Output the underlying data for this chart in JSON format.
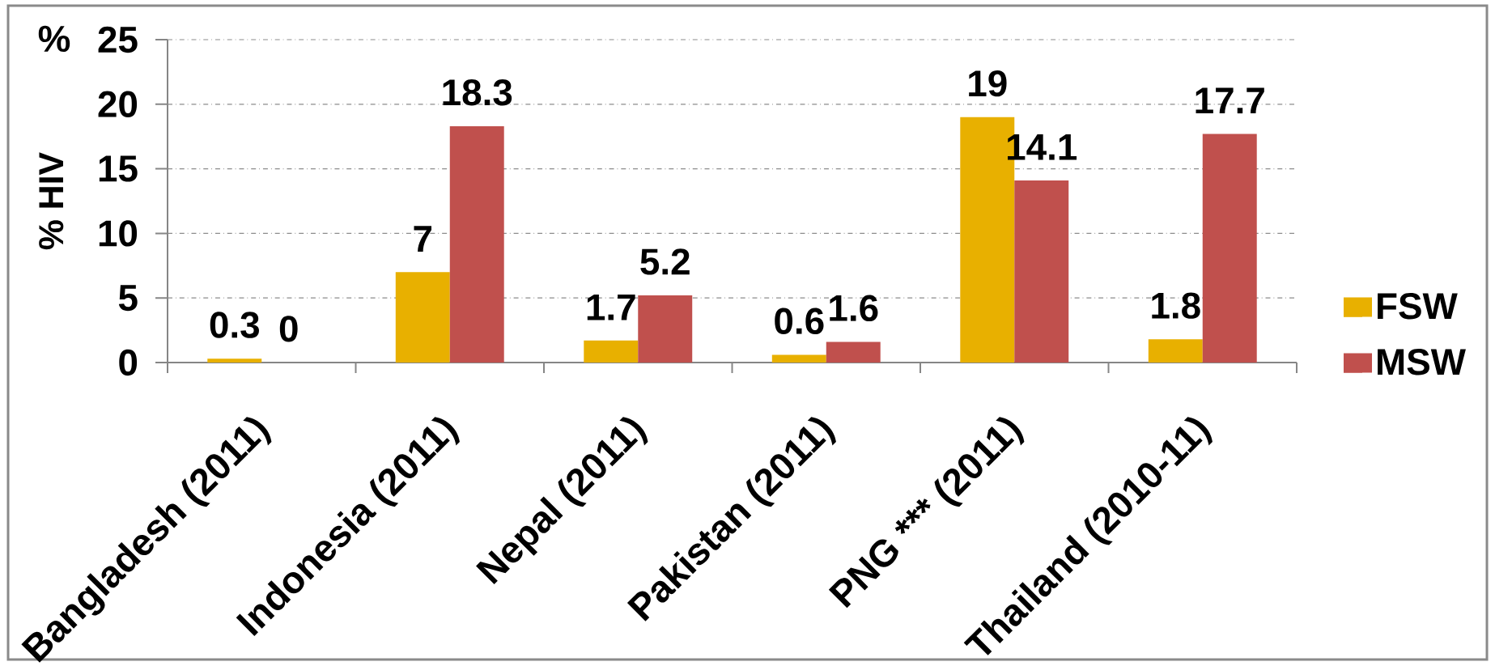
{
  "chart_data": {
    "type": "bar",
    "categories": [
      "Bangladesh (2011)",
      "Indonesia (2011)",
      "Nepal (2011)",
      "Pakistan (2011)",
      "PNG *** (2011)",
      "Thailand (2010-11)"
    ],
    "series": [
      {
        "name": "FSW",
        "color": "#E8B000",
        "values": [
          0.3,
          7,
          1.7,
          0.6,
          19,
          1.8
        ]
      },
      {
        "name": "MSW",
        "color": "#C0504D",
        "values": [
          0,
          18.3,
          5.2,
          1.6,
          14.1,
          17.7
        ]
      }
    ],
    "ylabel": "% HIV",
    "annotations": [
      "%"
    ],
    "ylim": [
      0,
      25
    ],
    "yticks": [
      0,
      5,
      10,
      15,
      20,
      25
    ],
    "grid": "y",
    "legend": "right",
    "data_labels": true
  }
}
